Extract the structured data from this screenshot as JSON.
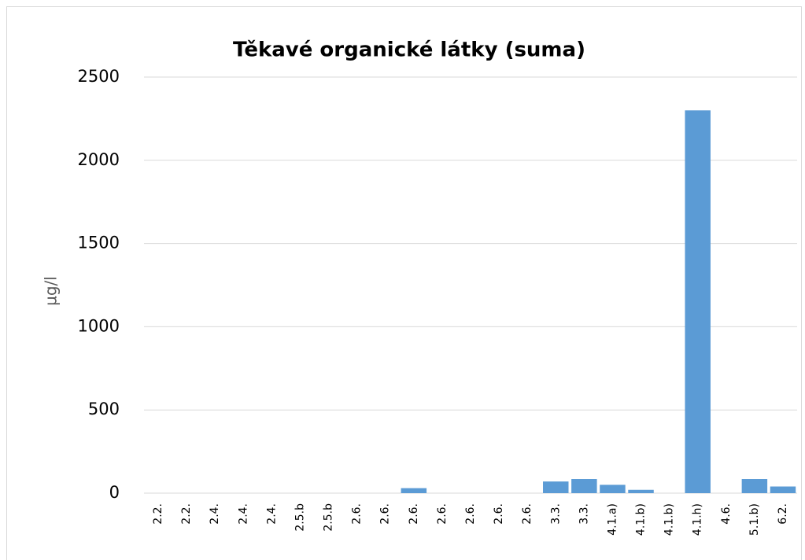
{
  "chart_data": {
    "type": "bar",
    "title": "Těkavé organické látky (suma)",
    "y_label": "µg/l",
    "categories": [
      "2.2.",
      "2.2.",
      "2.4.",
      "2.4.",
      "2.4.",
      "2.5.b",
      "2.5.b",
      "2.6.",
      "2.6.",
      "2.6.",
      "2.6.",
      "2.6.",
      "2.6.",
      "2.6.",
      "3.3.",
      "3.3.",
      "4.1.a)",
      "4.1.b)",
      "4.1.b)",
      "4.1.h)",
      "4.6.",
      "5.1.b)",
      "6.2."
    ],
    "values": [
      0,
      0,
      0,
      0,
      0,
      0,
      0,
      0,
      0,
      30,
      0,
      0,
      0,
      0,
      70,
      85,
      50,
      20,
      0,
      2300,
      0,
      85,
      40
    ],
    "color": "#5b9bd5",
    "ylim": [
      0,
      2500
    ],
    "yticks": [
      0,
      500,
      1000,
      1500,
      2000,
      2500
    ],
    "grid": true
  }
}
